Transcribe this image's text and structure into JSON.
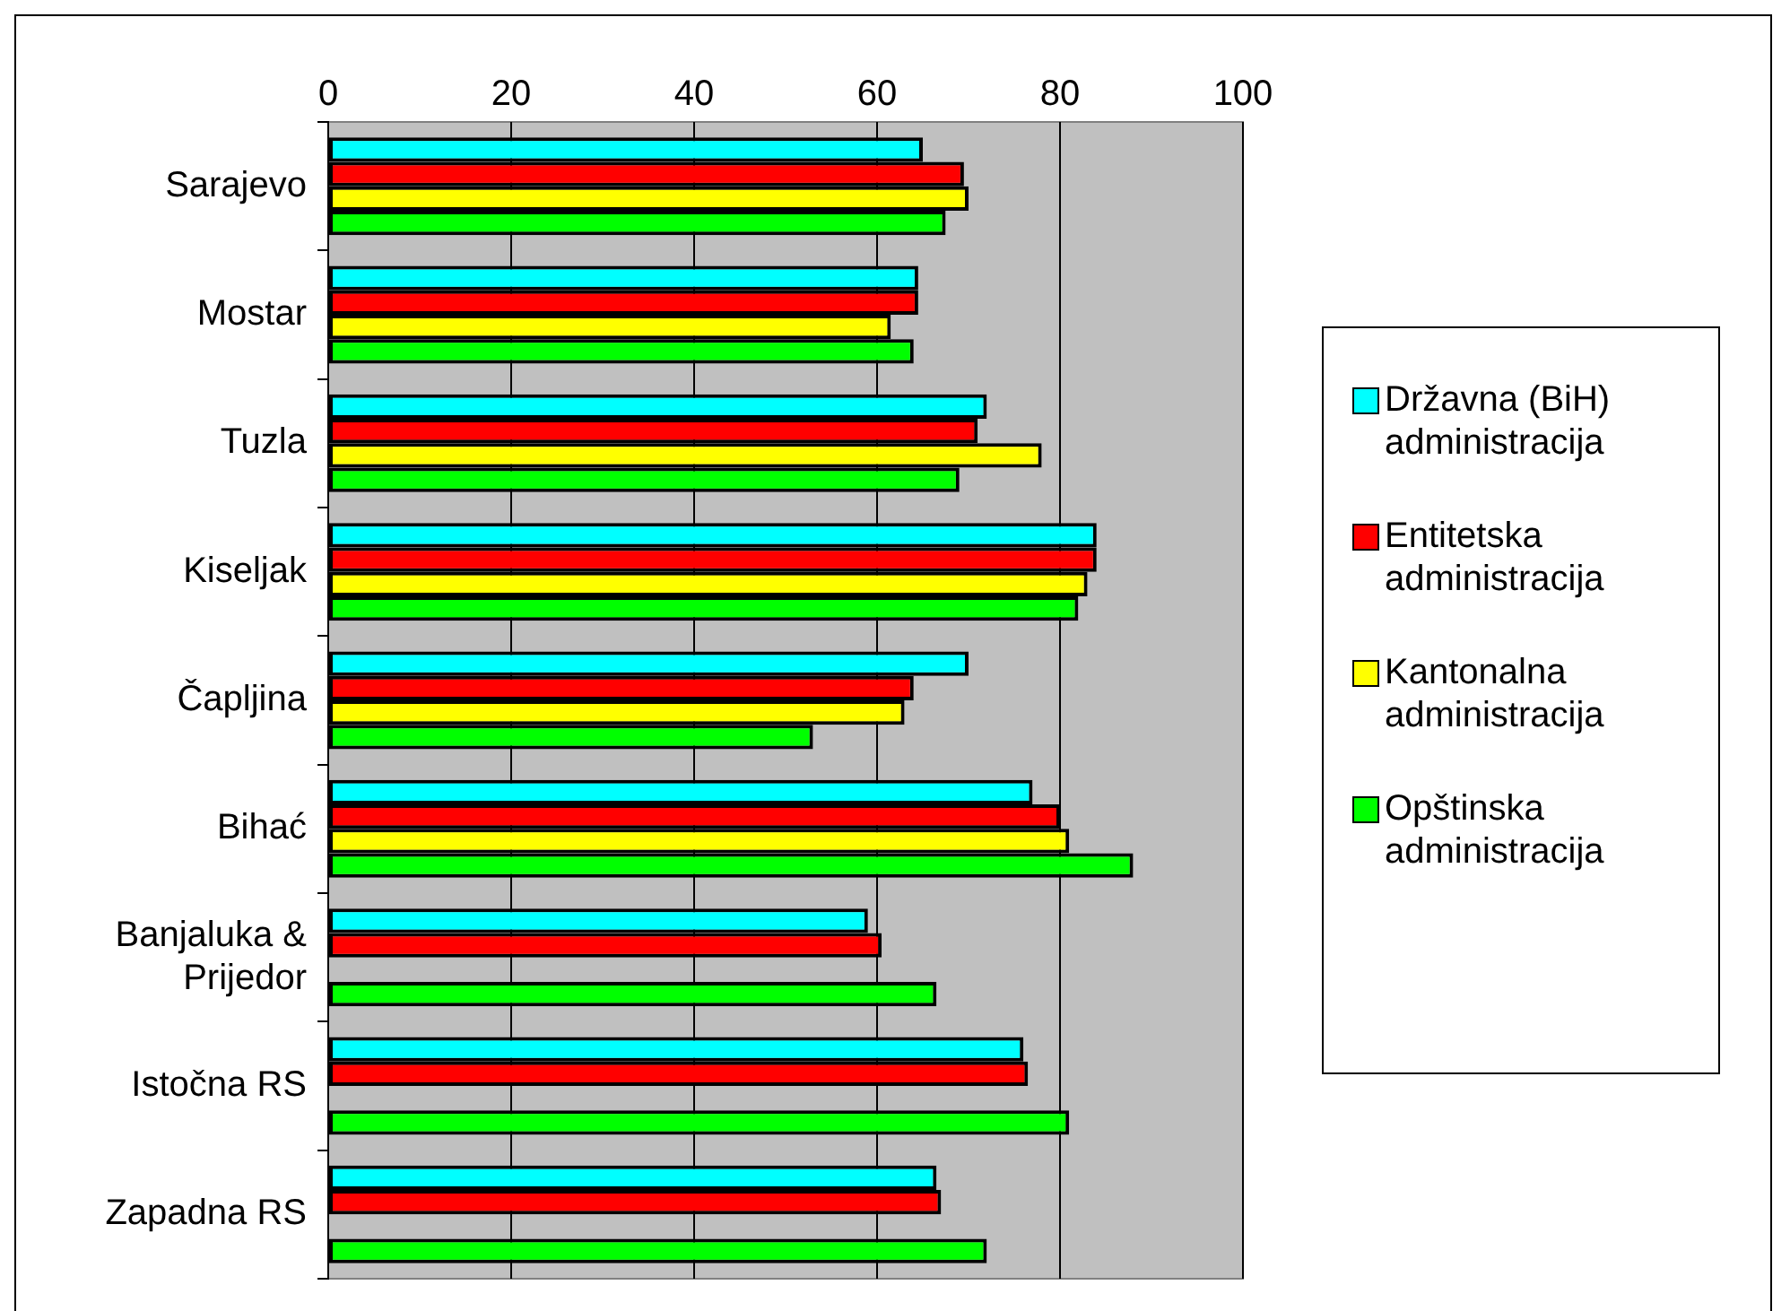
{
  "chart_data": {
    "type": "bar",
    "orientation": "horizontal",
    "categories": [
      "Sarajevo",
      "Mostar",
      "Tuzla",
      "Kiseljak",
      "Čapljina",
      "Bihać",
      "Banjaluka & Prijedor",
      "Istočna RS",
      "Zapadna RS"
    ],
    "series": [
      {
        "name": "Državna (BiH) administracija",
        "color": "#00ffff",
        "values": [
          65,
          64.5,
          72,
          84,
          70,
          77,
          59,
          76,
          66.5
        ]
      },
      {
        "name": "Entitetska administracija",
        "color": "#ff0000",
        "values": [
          69.5,
          64.5,
          71,
          84,
          64,
          80,
          60.5,
          76.5,
          67
        ]
      },
      {
        "name": "Kantonalna administracija",
        "color": "#ffff00",
        "values": [
          70,
          61.5,
          78,
          83,
          63,
          81,
          null,
          null,
          null
        ]
      },
      {
        "name": "Opštinska administracija",
        "color": "#00ff00",
        "values": [
          67.5,
          64,
          69,
          82,
          53,
          88,
          66.5,
          81,
          72
        ]
      }
    ],
    "xlim": [
      0,
      100
    ],
    "xticks": [
      0,
      20,
      40,
      60,
      80,
      100
    ],
    "grid": "x",
    "legend": "right"
  }
}
